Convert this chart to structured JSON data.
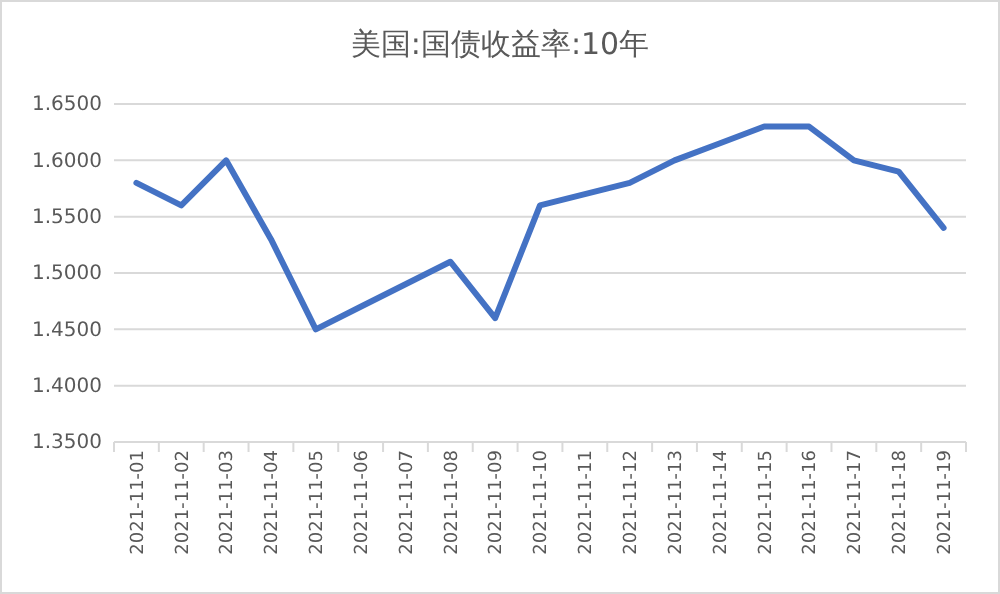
{
  "chart_data": {
    "type": "line",
    "title": "美国:国债收益率:10年",
    "categories": [
      "2021-11-01",
      "2021-11-02",
      "2021-11-03",
      "2021-11-04",
      "2021-11-05",
      "2021-11-06",
      "2021-11-07",
      "2021-11-08",
      "2021-11-09",
      "2021-11-10",
      "2021-11-11",
      "2021-11-12",
      "2021-11-13",
      "2021-11-14",
      "2021-11-15",
      "2021-11-16",
      "2021-11-17",
      "2021-11-18",
      "2021-11-19"
    ],
    "series": [
      {
        "color": "#4472c4",
        "values": [
          1.58,
          1.56,
          1.6,
          1.53,
          1.45,
          1.47,
          1.49,
          1.51,
          1.46,
          1.56,
          1.57,
          1.58,
          1.6,
          1.615,
          1.63,
          1.63,
          1.6,
          1.59,
          1.54
        ]
      }
    ],
    "ylim": [
      1.35,
      1.65
    ],
    "yticks": [
      {
        "value": 1.35,
        "label": "1.3500"
      },
      {
        "value": 1.4,
        "label": "1.4000"
      },
      {
        "value": 1.45,
        "label": "1.4500"
      },
      {
        "value": 1.5,
        "label": "1.5000"
      },
      {
        "value": 1.55,
        "label": "1.5500"
      },
      {
        "value": 1.6,
        "label": "1.6000"
      },
      {
        "value": 1.65,
        "label": "1.6500"
      }
    ],
    "grid": "y",
    "marker": "none",
    "line_style": "solid"
  }
}
